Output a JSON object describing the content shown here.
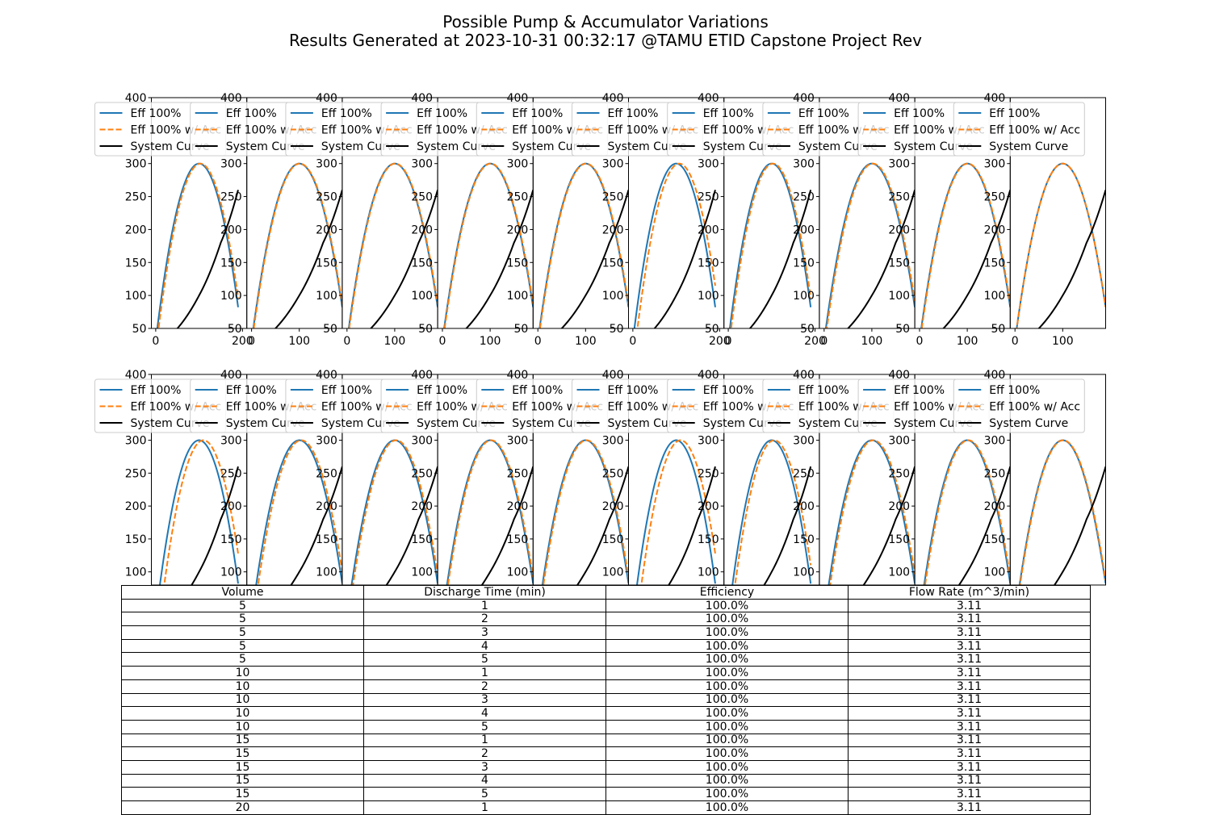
{
  "title": {
    "line1": "Possible Pump & Accumulator Variations",
    "line2": "Results Generated at 2023-10-31 00:32:17 @TAMU ETID Capstone Project Rev"
  },
  "colors": {
    "eff": "#1f77b4",
    "acc": "#ff7f0e",
    "system": "#000000"
  },
  "chart_data": {
    "type": "line",
    "layout": "2 rows x 10 small-multiple line plots",
    "legend": [
      "Eff 100%",
      "Eff 100% w/ Acc",
      "System Curve"
    ],
    "legend_placement": "upper left",
    "grid": false,
    "ylim_top": [
      50,
      400
    ],
    "ylim_bottom": [
      80,
      400
    ],
    "y_ticks_top": [
      50,
      100,
      150,
      200,
      250,
      300,
      400
    ],
    "y_ticks_bottom": [
      100,
      150,
      200,
      250,
      300,
      400
    ],
    "pump_curve_peak": {
      "x": 100,
      "y": 300
    },
    "system_curve": {
      "x": [
        50,
        100,
        150,
        190
      ],
      "y": [
        50,
        100,
        180,
        260
      ]
    },
    "plots_top": [
      {
        "x_ticks": [
          "0",
          "200"
        ],
        "xmin": -10,
        "xmax": 210
      },
      {
        "x_ticks": [
          "0",
          "100"
        ],
        "xmin": -10,
        "xmax": 190
      },
      {
        "x_ticks": [
          "0",
          "100"
        ],
        "xmin": -10,
        "xmax": 190
      },
      {
        "x_ticks": [
          "0",
          "100"
        ],
        "xmin": -10,
        "xmax": 190
      },
      {
        "x_ticks": [
          "0",
          "100"
        ],
        "xmin": -10,
        "xmax": 190
      },
      {
        "x_ticks": [
          "0",
          "200"
        ],
        "xmin": -10,
        "xmax": 210
      },
      {
        "x_ticks": [
          "0",
          "200"
        ],
        "xmin": -10,
        "xmax": 210
      },
      {
        "x_ticks": [
          "0",
          "100"
        ],
        "xmin": -10,
        "xmax": 190
      },
      {
        "x_ticks": [
          "0",
          "100"
        ],
        "xmin": -10,
        "xmax": 190
      },
      {
        "x_ticks": [
          "0",
          "100"
        ],
        "xmin": -10,
        "xmax": 190
      }
    ]
  },
  "table": {
    "columns": [
      "Volume",
      "Discharge Time (min)",
      "Efficiency",
      "Flow Rate (m^3/min)"
    ],
    "rows": [
      [
        "5",
        "1",
        "100.0%",
        "3.11"
      ],
      [
        "5",
        "2",
        "100.0%",
        "3.11"
      ],
      [
        "5",
        "3",
        "100.0%",
        "3.11"
      ],
      [
        "5",
        "4",
        "100.0%",
        "3.11"
      ],
      [
        "5",
        "5",
        "100.0%",
        "3.11"
      ],
      [
        "10",
        "1",
        "100.0%",
        "3.11"
      ],
      [
        "10",
        "2",
        "100.0%",
        "3.11"
      ],
      [
        "10",
        "3",
        "100.0%",
        "3.11"
      ],
      [
        "10",
        "4",
        "100.0%",
        "3.11"
      ],
      [
        "10",
        "5",
        "100.0%",
        "3.11"
      ],
      [
        "15",
        "1",
        "100.0%",
        "3.11"
      ],
      [
        "15",
        "2",
        "100.0%",
        "3.11"
      ],
      [
        "15",
        "3",
        "100.0%",
        "3.11"
      ],
      [
        "15",
        "4",
        "100.0%",
        "3.11"
      ],
      [
        "15",
        "5",
        "100.0%",
        "3.11"
      ],
      [
        "20",
        "1",
        "100.0%",
        "3.11"
      ]
    ]
  }
}
